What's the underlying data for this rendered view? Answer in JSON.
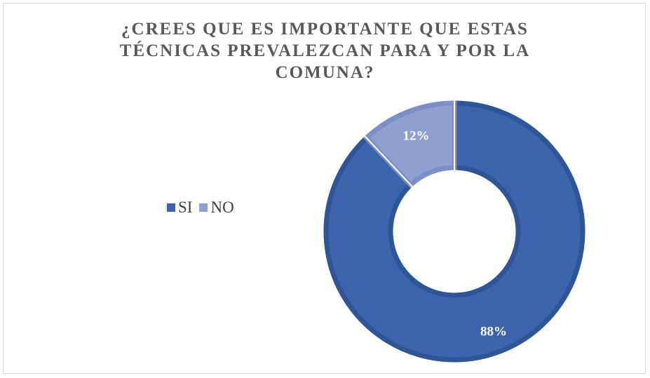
{
  "chart_data": {
    "type": "pie",
    "subtype": "doughnut",
    "title": "¿CREES QUE ES IMPORTANTE QUE ESTAS\nTÉCNICAS PREVALEZCAN PARA Y POR  LA\nCOMUNA?",
    "categories": [
      "SI",
      "NO"
    ],
    "values": [
      88,
      12
    ],
    "data_labels": [
      "88%",
      "12%"
    ],
    "colors": [
      "#3d63ac",
      "#8e9fd2"
    ],
    "legend_position": "left"
  }
}
